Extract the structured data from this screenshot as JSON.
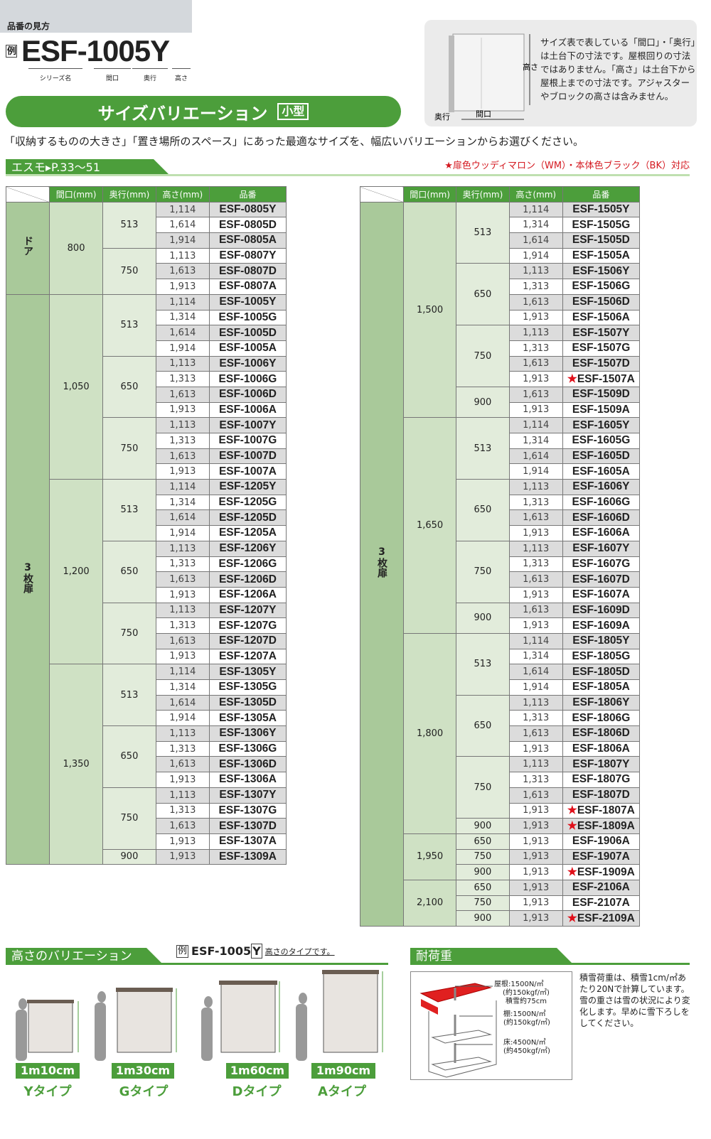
{
  "howto": {
    "title": "品番の見方",
    "example_mark": "例",
    "code": "ESF-1005Y",
    "parts": [
      "シリーズ名",
      "間口",
      "奥行",
      "高さ"
    ]
  },
  "banner": {
    "title": "サイズバリエーション",
    "tag": "小型"
  },
  "info": {
    "text": "サイズ表で表している「間口」・「奥行」は土台下の寸法です。屋根回りの寸法ではありません。「高さ」は土台下から屋根上までの寸法です。アジャスターやブロックの高さは含みません。",
    "diagram_labels": {
      "height": "高さ",
      "width": "間口",
      "depth": "奥行"
    }
  },
  "intro": "「収納するものの大きさ」「置き場所のスペース」にあった最適なサイズを、幅広いバリエーションからお選びください。",
  "section": {
    "title": "エスモ▸P.33～51",
    "note": "★扉色ウッディマロン（WM）・本体色ブラック（BK）対応"
  },
  "colors": {
    "green": "#4c9e3b",
    "star": "#e0101a"
  },
  "table_headers": [
    "間口(mm)",
    "奥行(mm)",
    "高さ(mm)",
    "品番"
  ],
  "tables": [
    {
      "types": [
        {
          "type": "ドア",
          "widths": [
            {
              "width": "800",
              "depths": [
                {
                  "depth": "513",
                  "rows": [
                    [
                      "1,114",
                      "ESF-0805Y"
                    ],
                    [
                      "1,614",
                      "ESF-0805D"
                    ],
                    [
                      "1,914",
                      "ESF-0805A"
                    ]
                  ]
                },
                {
                  "depth": "750",
                  "rows": [
                    [
                      "1,113",
                      "ESF-0807Y"
                    ],
                    [
                      "1,613",
                      "ESF-0807D"
                    ],
                    [
                      "1,913",
                      "ESF-0807A"
                    ]
                  ]
                }
              ]
            }
          ]
        },
        {
          "type": "3枚扉",
          "widths": [
            {
              "width": "1,050",
              "depths": [
                {
                  "depth": "513",
                  "rows": [
                    [
                      "1,114",
                      "ESF-1005Y"
                    ],
                    [
                      "1,314",
                      "ESF-1005G"
                    ],
                    [
                      "1,614",
                      "ESF-1005D"
                    ],
                    [
                      "1,914",
                      "ESF-1005A"
                    ]
                  ]
                },
                {
                  "depth": "650",
                  "rows": [
                    [
                      "1,113",
                      "ESF-1006Y"
                    ],
                    [
                      "1,313",
                      "ESF-1006G"
                    ],
                    [
                      "1,613",
                      "ESF-1006D"
                    ],
                    [
                      "1,913",
                      "ESF-1006A"
                    ]
                  ]
                },
                {
                  "depth": "750",
                  "rows": [
                    [
                      "1,113",
                      "ESF-1007Y"
                    ],
                    [
                      "1,313",
                      "ESF-1007G"
                    ],
                    [
                      "1,613",
                      "ESF-1007D"
                    ],
                    [
                      "1,913",
                      "ESF-1007A"
                    ]
                  ]
                }
              ]
            },
            {
              "width": "1,200",
              "depths": [
                {
                  "depth": "513",
                  "rows": [
                    [
                      "1,114",
                      "ESF-1205Y"
                    ],
                    [
                      "1,314",
                      "ESF-1205G"
                    ],
                    [
                      "1,614",
                      "ESF-1205D"
                    ],
                    [
                      "1,914",
                      "ESF-1205A"
                    ]
                  ]
                },
                {
                  "depth": "650",
                  "rows": [
                    [
                      "1,113",
                      "ESF-1206Y"
                    ],
                    [
                      "1,313",
                      "ESF-1206G"
                    ],
                    [
                      "1,613",
                      "ESF-1206D"
                    ],
                    [
                      "1,913",
                      "ESF-1206A"
                    ]
                  ]
                },
                {
                  "depth": "750",
                  "rows": [
                    [
                      "1,113",
                      "ESF-1207Y"
                    ],
                    [
                      "1,313",
                      "ESF-1207G"
                    ],
                    [
                      "1,613",
                      "ESF-1207D"
                    ],
                    [
                      "1,913",
                      "ESF-1207A"
                    ]
                  ]
                }
              ]
            },
            {
              "width": "1,350",
              "depths": [
                {
                  "depth": "513",
                  "rows": [
                    [
                      "1,114",
                      "ESF-1305Y"
                    ],
                    [
                      "1,314",
                      "ESF-1305G"
                    ],
                    [
                      "1,614",
                      "ESF-1305D"
                    ],
                    [
                      "1,914",
                      "ESF-1305A"
                    ]
                  ]
                },
                {
                  "depth": "650",
                  "rows": [
                    [
                      "1,113",
                      "ESF-1306Y"
                    ],
                    [
                      "1,313",
                      "ESF-1306G"
                    ],
                    [
                      "1,613",
                      "ESF-1306D"
                    ],
                    [
                      "1,913",
                      "ESF-1306A"
                    ]
                  ]
                },
                {
                  "depth": "750",
                  "rows": [
                    [
                      "1,113",
                      "ESF-1307Y"
                    ],
                    [
                      "1,313",
                      "ESF-1307G"
                    ],
                    [
                      "1,613",
                      "ESF-1307D"
                    ],
                    [
                      "1,913",
                      "ESF-1307A"
                    ]
                  ]
                },
                {
                  "depth": "900",
                  "rows": [
                    [
                      "1,913",
                      "ESF-1309A"
                    ]
                  ]
                }
              ]
            }
          ]
        }
      ]
    },
    {
      "types": [
        {
          "type": "3枚扉",
          "widths": [
            {
              "width": "1,500",
              "depths": [
                {
                  "depth": "513",
                  "rows": [
                    [
                      "1,114",
                      "ESF-1505Y"
                    ],
                    [
                      "1,314",
                      "ESF-1505G"
                    ],
                    [
                      "1,614",
                      "ESF-1505D"
                    ],
                    [
                      "1,914",
                      "ESF-1505A"
                    ]
                  ]
                },
                {
                  "depth": "650",
                  "rows": [
                    [
                      "1,113",
                      "ESF-1506Y"
                    ],
                    [
                      "1,313",
                      "ESF-1506G"
                    ],
                    [
                      "1,613",
                      "ESF-1506D"
                    ],
                    [
                      "1,913",
                      "ESF-1506A"
                    ]
                  ]
                },
                {
                  "depth": "750",
                  "rows": [
                    [
                      "1,113",
                      "ESF-1507Y"
                    ],
                    [
                      "1,313",
                      "ESF-1507G"
                    ],
                    [
                      "1,613",
                      "ESF-1507D"
                    ],
                    [
                      "1,913",
                      "ESF-1507A",
                      "★"
                    ]
                  ]
                },
                {
                  "depth": "900",
                  "rows": [
                    [
                      "1,613",
                      "ESF-1509D"
                    ],
                    [
                      "1,913",
                      "ESF-1509A"
                    ]
                  ]
                }
              ]
            },
            {
              "width": "1,650",
              "depths": [
                {
                  "depth": "513",
                  "rows": [
                    [
                      "1,114",
                      "ESF-1605Y"
                    ],
                    [
                      "1,314",
                      "ESF-1605G"
                    ],
                    [
                      "1,614",
                      "ESF-1605D"
                    ],
                    [
                      "1,914",
                      "ESF-1605A"
                    ]
                  ]
                },
                {
                  "depth": "650",
                  "rows": [
                    [
                      "1,113",
                      "ESF-1606Y"
                    ],
                    [
                      "1,313",
                      "ESF-1606G"
                    ],
                    [
                      "1,613",
                      "ESF-1606D"
                    ],
                    [
                      "1,913",
                      "ESF-1606A"
                    ]
                  ]
                },
                {
                  "depth": "750",
                  "rows": [
                    [
                      "1,113",
                      "ESF-1607Y"
                    ],
                    [
                      "1,313",
                      "ESF-1607G"
                    ],
                    [
                      "1,613",
                      "ESF-1607D"
                    ],
                    [
                      "1,913",
                      "ESF-1607A"
                    ]
                  ]
                },
                {
                  "depth": "900",
                  "rows": [
                    [
                      "1,613",
                      "ESF-1609D"
                    ],
                    [
                      "1,913",
                      "ESF-1609A"
                    ]
                  ]
                }
              ]
            },
            {
              "width": "1,800",
              "depths": [
                {
                  "depth": "513",
                  "rows": [
                    [
                      "1,114",
                      "ESF-1805Y"
                    ],
                    [
                      "1,314",
                      "ESF-1805G"
                    ],
                    [
                      "1,614",
                      "ESF-1805D"
                    ],
                    [
                      "1,914",
                      "ESF-1805A"
                    ]
                  ]
                },
                {
                  "depth": "650",
                  "rows": [
                    [
                      "1,113",
                      "ESF-1806Y"
                    ],
                    [
                      "1,313",
                      "ESF-1806G"
                    ],
                    [
                      "1,613",
                      "ESF-1806D"
                    ],
                    [
                      "1,913",
                      "ESF-1806A"
                    ]
                  ]
                },
                {
                  "depth": "750",
                  "rows": [
                    [
                      "1,113",
                      "ESF-1807Y"
                    ],
                    [
                      "1,313",
                      "ESF-1807G"
                    ],
                    [
                      "1,613",
                      "ESF-1807D"
                    ],
                    [
                      "1,913",
                      "ESF-1807A",
                      "★"
                    ]
                  ]
                },
                {
                  "depth": "900",
                  "rows": [
                    [
                      "1,913",
                      "ESF-1809A",
                      "★"
                    ]
                  ]
                }
              ]
            },
            {
              "width": "1,950",
              "depths": [
                {
                  "depth": "650",
                  "rows": [
                    [
                      "1,913",
                      "ESF-1906A"
                    ]
                  ]
                },
                {
                  "depth": "750",
                  "rows": [
                    [
                      "1,913",
                      "ESF-1907A"
                    ]
                  ]
                },
                {
                  "depth": "900",
                  "rows": [
                    [
                      "1,913",
                      "ESF-1909A",
                      "★"
                    ]
                  ]
                }
              ]
            },
            {
              "width": "2,100",
              "depths": [
                {
                  "depth": "650",
                  "rows": [
                    [
                      "1,913",
                      "ESF-2106A"
                    ]
                  ]
                },
                {
                  "depth": "750",
                  "rows": [
                    [
                      "1,913",
                      "ESF-2107A"
                    ]
                  ]
                },
                {
                  "depth": "900",
                  "rows": [
                    [
                      "1,913",
                      "ESF-2109A",
                      "★"
                    ]
                  ]
                }
              ]
            }
          ]
        }
      ]
    }
  ],
  "height_variation": {
    "title": "高さのバリエーション",
    "example_mark": "例",
    "example_code": "ESF-1005",
    "example_suffix": "Y",
    "example_note": "高さのタイプです。",
    "items": [
      {
        "height": "1m10cm",
        "type": "Yタイプ"
      },
      {
        "height": "1m30cm",
        "type": "Gタイプ"
      },
      {
        "height": "1m60cm",
        "type": "Dタイプ"
      },
      {
        "height": "1m90cm",
        "type": "Aタイプ"
      }
    ]
  },
  "load": {
    "title": "耐荷重",
    "roof": [
      "屋根:1500N/㎡",
      "(約150kgf/㎡)",
      "積雪約75cm"
    ],
    "shelf": [
      "棚:1500N/㎡",
      "(約150kgf/㎡)"
    ],
    "floor": [
      "床:4500N/㎡",
      "(約450kgf/㎡)"
    ],
    "note": "積雪荷重は、積雪1cm/㎡あたり20Nで計算しています。雪の重さは雪の状況により変化します。早めに雪下ろしをしてください。"
  }
}
